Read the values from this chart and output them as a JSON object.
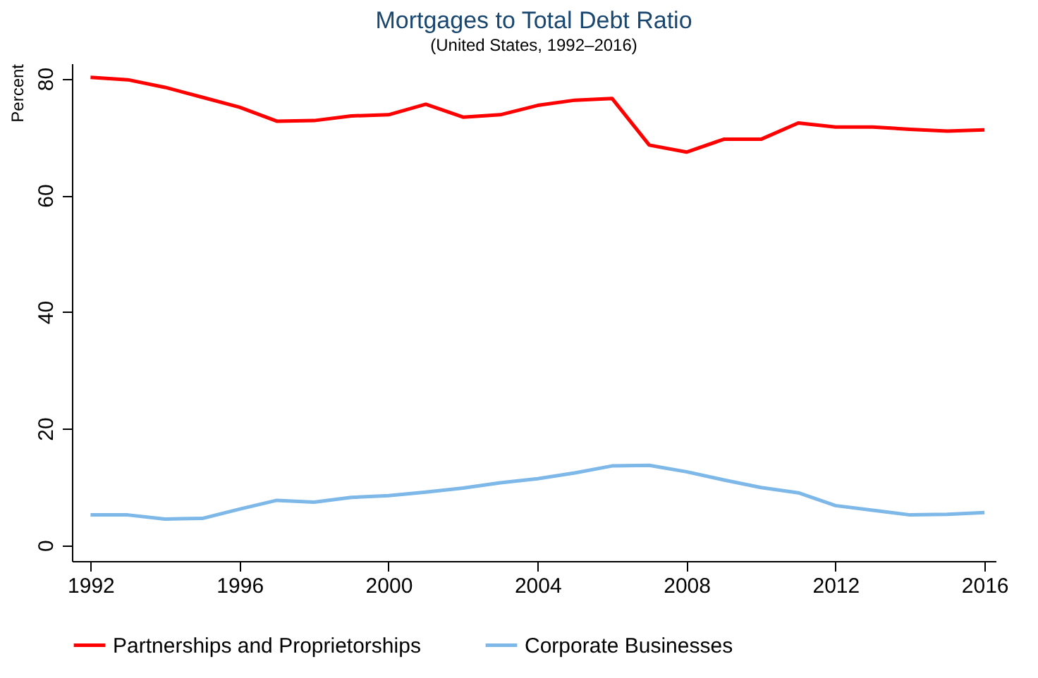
{
  "chart_data": {
    "type": "line",
    "title": "Mortgages to Total Debt Ratio",
    "subtitle": "(United States, 1992–2016)",
    "ylabel": "Percent",
    "x": [
      1992,
      1993,
      1994,
      1995,
      1996,
      1997,
      1998,
      1999,
      2000,
      2001,
      2002,
      2003,
      2004,
      2005,
      2006,
      2007,
      2008,
      2009,
      2010,
      2011,
      2012,
      2013,
      2014,
      2015,
      2016
    ],
    "series": [
      {
        "name": "Partnerships and Proprietorships",
        "color": "#ff0000",
        "values": [
          80.2,
          79.8,
          78.5,
          76.8,
          75.1,
          72.7,
          72.8,
          73.6,
          73.8,
          75.6,
          73.4,
          73.8,
          75.4,
          76.3,
          76.6,
          68.6,
          67.4,
          69.6,
          69.6,
          72.4,
          71.7,
          71.7,
          71.3,
          71.0,
          71.2
        ]
      },
      {
        "name": "Corporate Businesses",
        "color": "#7db8e8",
        "values": [
          5.2,
          5.2,
          4.5,
          4.6,
          6.2,
          7.7,
          7.4,
          8.2,
          8.5,
          9.1,
          9.8,
          10.7,
          11.4,
          12.4,
          13.6,
          13.7,
          12.6,
          11.2,
          9.9,
          9.0,
          6.8,
          6.0,
          5.2,
          5.3,
          5.6
        ]
      }
    ],
    "xlim": [
      1991.5,
      2016.3
    ],
    "xticks": [
      1992,
      1996,
      2000,
      2004,
      2008,
      2012,
      2016
    ],
    "ylim": [
      -2.7,
      82.6
    ],
    "yticks": [
      0,
      20,
      40,
      60,
      80
    ],
    "grid": false,
    "legend": "bottom",
    "marker": "none",
    "line_style": "solid"
  }
}
